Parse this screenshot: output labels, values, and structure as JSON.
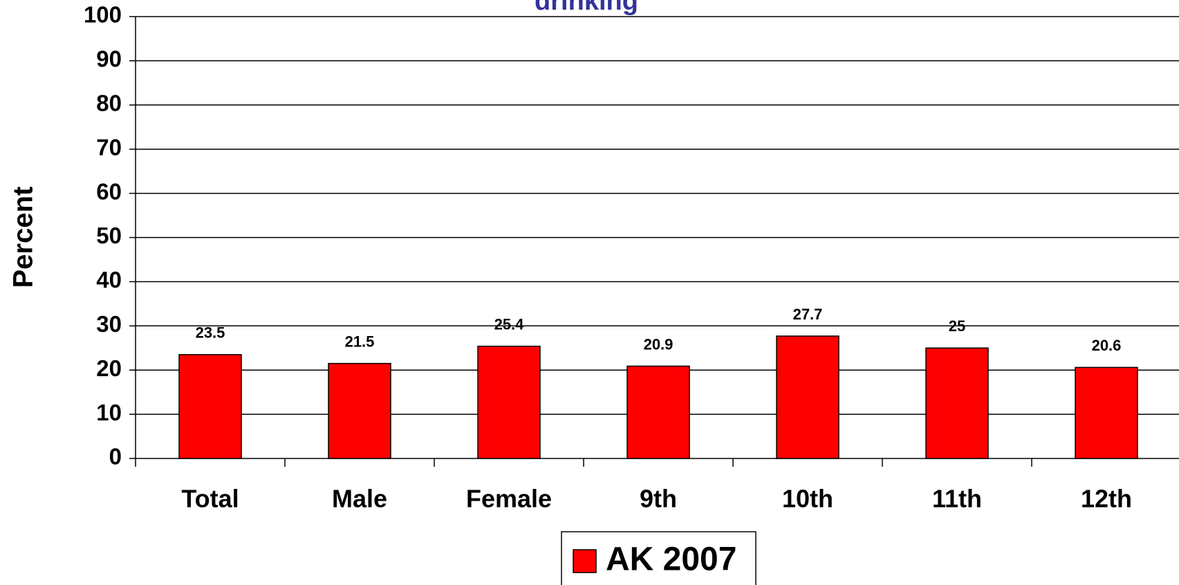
{
  "chart_data": {
    "type": "bar",
    "title": "drinking",
    "y_label": "Percent",
    "categories": [
      "Total",
      "Male",
      "Female",
      "9th",
      "10th",
      "11th",
      "12th"
    ],
    "series": [
      {
        "name": "AK 2007",
        "color": "#ff0000",
        "values": [
          23.5,
          21.5,
          25.4,
          20.9,
          27.7,
          25,
          20.6
        ]
      }
    ],
    "ylim": [
      0,
      100
    ],
    "yticks": [
      0,
      10,
      20,
      30,
      40,
      50,
      60,
      70,
      80,
      90,
      100
    ],
    "grid": true,
    "legend": "bottom"
  }
}
